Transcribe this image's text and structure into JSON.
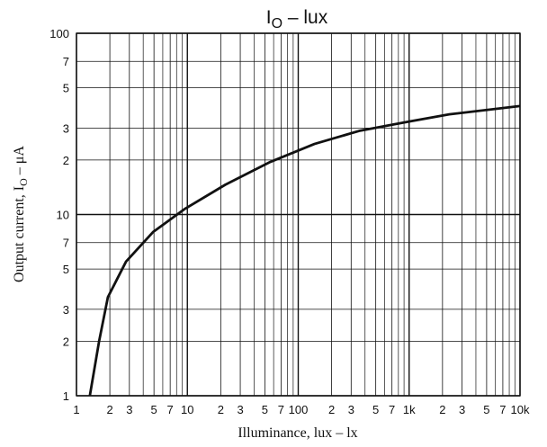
{
  "chart_data": {
    "type": "line",
    "title": [
      "I",
      "O",
      " – lux"
    ],
    "x_label": "Illuminance, lux – lx",
    "y_label": [
      "Output current, I",
      "O",
      " – μA"
    ],
    "x": [
      1.32,
      1.6,
      1.92,
      2.8,
      4.9,
      9.4,
      22,
      56,
      140,
      360,
      1000,
      2300,
      10000
    ],
    "values": [
      1,
      2,
      3.5,
      5.5,
      8,
      10.7,
      14.6,
      19.5,
      24.5,
      29,
      32.6,
      35.7,
      39.7
    ],
    "color": "#111111",
    "x_scale": "log",
    "y_scale": "log",
    "grid": true,
    "xlim": [
      1,
      10000
    ],
    "ylim": [
      1,
      100
    ],
    "xticks": [
      1,
      2,
      3,
      5,
      7,
      10,
      {
        "value": 20,
        "label": "2"
      },
      {
        "value": 30,
        "label": "3"
      },
      {
        "value": 50,
        "label": "5"
      },
      {
        "value": 70,
        "label": "7"
      },
      100,
      {
        "value": 200,
        "label": "2"
      },
      {
        "value": 300,
        "label": "3"
      },
      {
        "value": 500,
        "label": "5"
      },
      {
        "value": 700,
        "label": "7"
      },
      {
        "value": 1000,
        "label": "1k"
      },
      {
        "value": 2000,
        "label": "2"
      },
      {
        "value": 3000,
        "label": "3"
      },
      {
        "value": 5000,
        "label": "5"
      },
      {
        "value": 7000,
        "label": "7"
      },
      {
        "value": 10000,
        "label": "10k"
      }
    ],
    "x_minor_grid": [
      4,
      6,
      8,
      9,
      40,
      60,
      80,
      90,
      400,
      600,
      800,
      900,
      4000,
      6000,
      8000,
      9000
    ],
    "yticks": [
      1,
      2,
      3,
      5,
      7,
      10,
      {
        "value": 20,
        "label": "2"
      },
      {
        "value": 30,
        "label": "3"
      },
      {
        "value": 50,
        "label": "5"
      },
      {
        "value": 70,
        "label": "7"
      },
      100
    ]
  }
}
